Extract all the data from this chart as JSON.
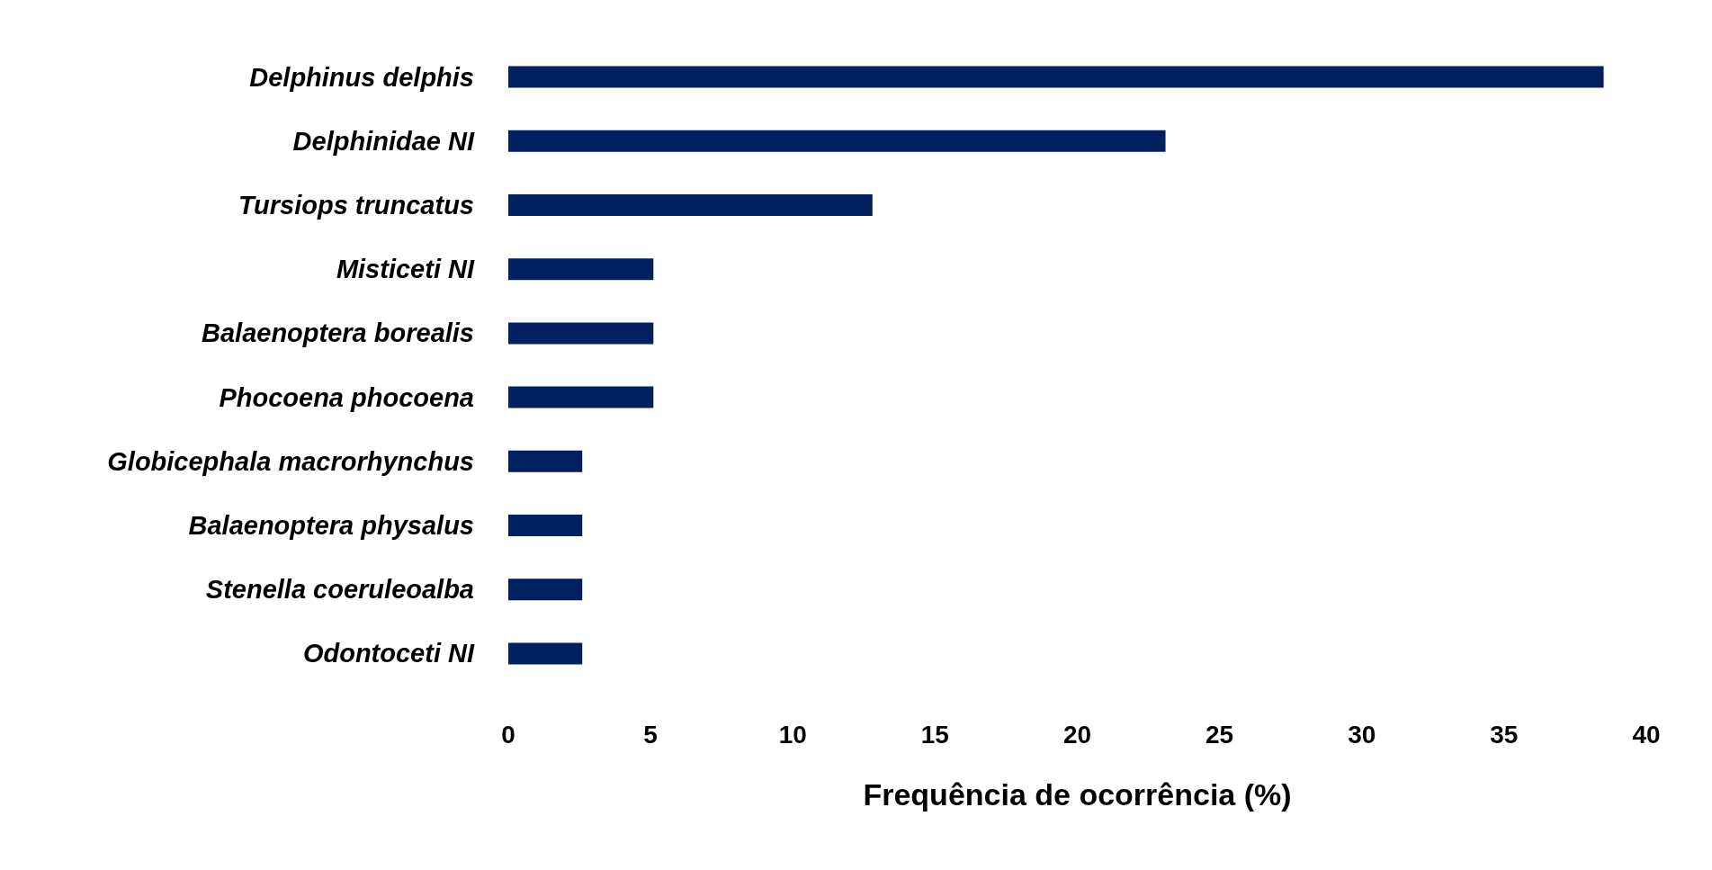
{
  "chart_data": {
    "type": "bar",
    "orientation": "horizontal",
    "xlabel": "Frequência de ocorrência (%)",
    "categories": [
      "Delphinus delphis",
      "Delphinidae NI",
      "Tursiops truncatus",
      "Misticeti NI",
      "Balaenoptera borealis",
      "Phocoena phocoena",
      "Globicephala macrorhynchus",
      "Balaenoptera physalus",
      "Stenella coeruleoalba",
      "Odontoceti NI"
    ],
    "values": [
      38.5,
      23.1,
      12.8,
      5.1,
      5.1,
      5.1,
      2.6,
      2.6,
      2.6,
      2.6
    ],
    "color": "#002060",
    "xlim": [
      0,
      40
    ],
    "xticks": [
      0,
      5,
      10,
      15,
      20,
      25,
      30,
      35,
      40
    ]
  }
}
